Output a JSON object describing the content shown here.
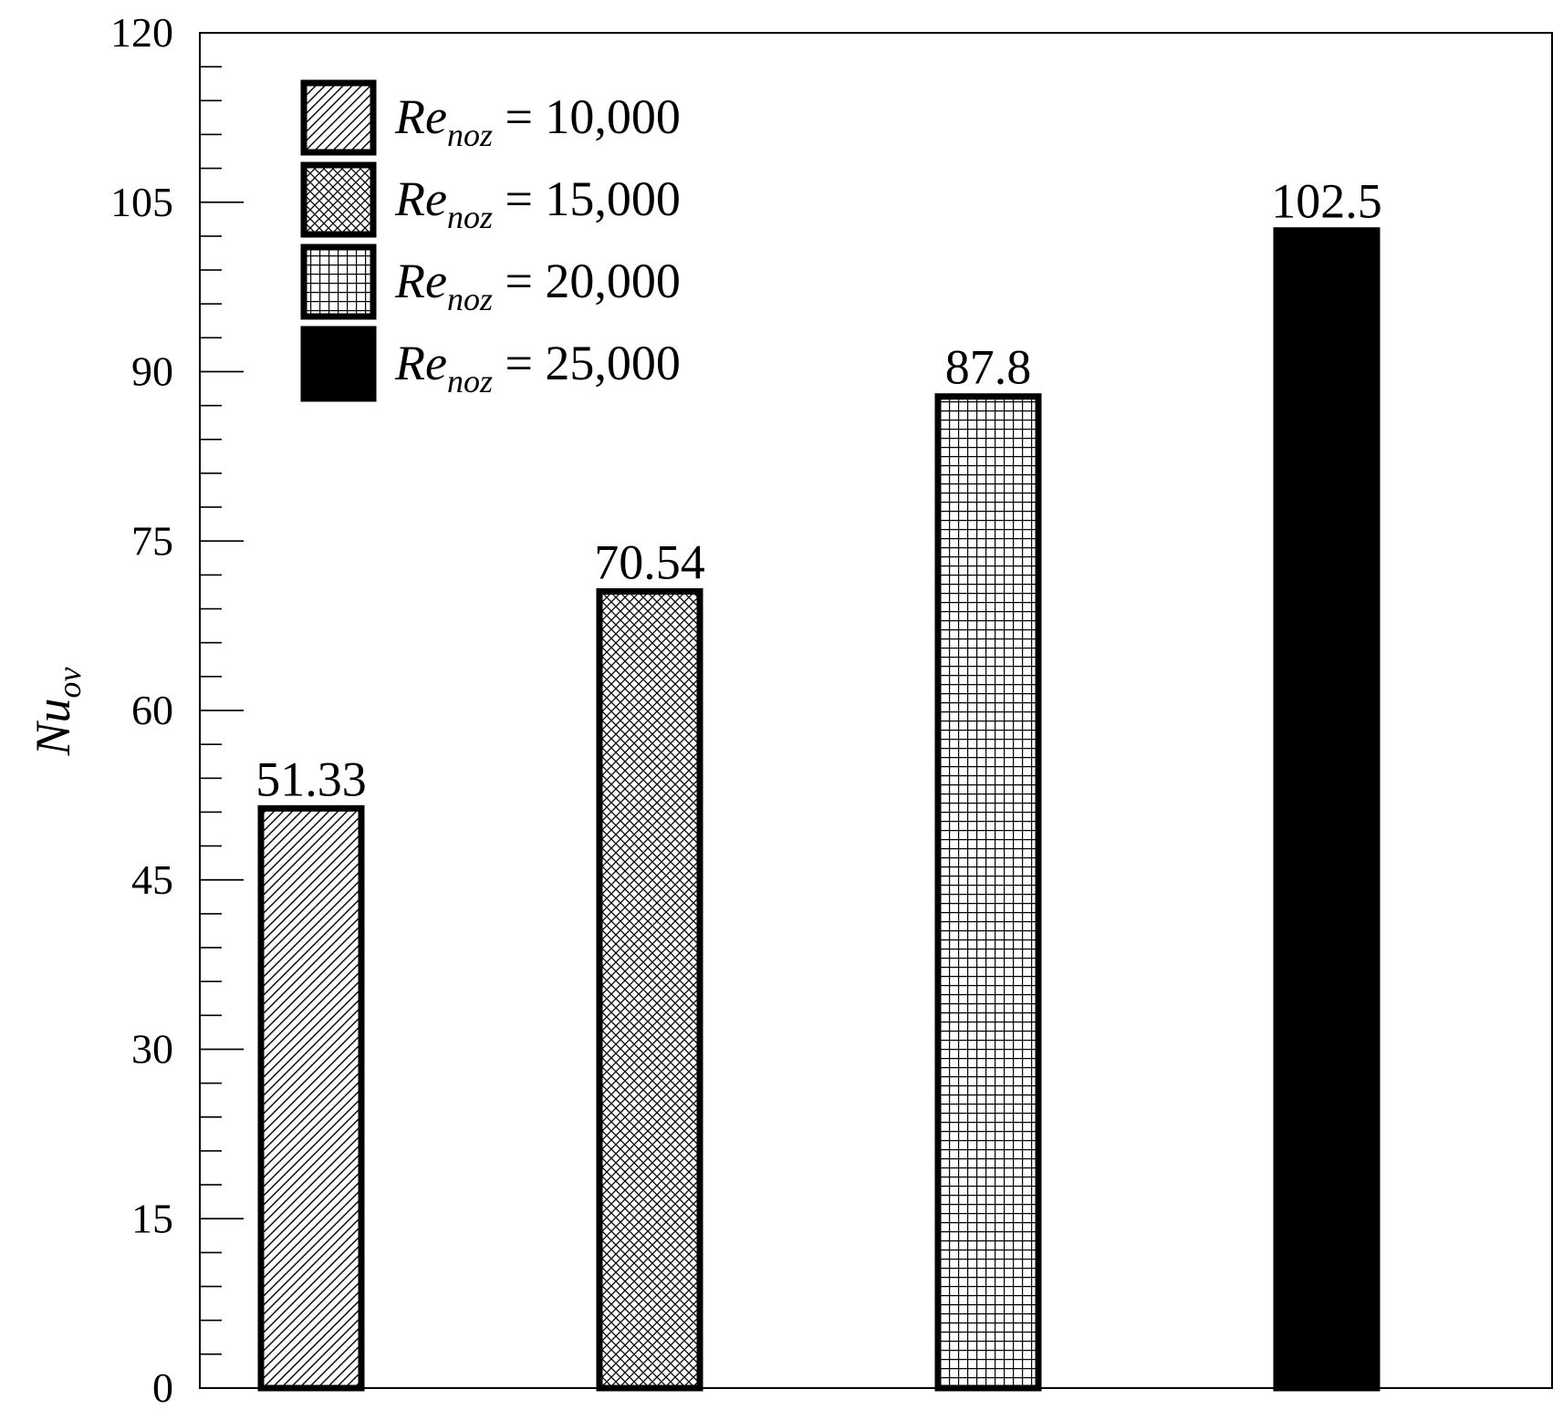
{
  "chart_data": {
    "type": "bar",
    "categories": [
      "Re_noz = 10,000",
      "Re_noz = 15,000",
      "Re_noz = 20,000",
      "Re_noz = 25,000"
    ],
    "values": [
      51.33,
      70.54,
      87.8,
      102.5
    ],
    "value_labels": [
      "51.33",
      "70.54",
      "87.8",
      "102.5"
    ],
    "title": "",
    "xlabel": "",
    "ylabel": {
      "main": "Nu",
      "sub": "ov"
    },
    "ylim": [
      0,
      120
    ],
    "yticks": [
      0,
      15,
      30,
      45,
      60,
      75,
      90,
      105,
      120
    ],
    "minor_tick_step": 3,
    "grid": false,
    "legend_position": "top-left",
    "legend": [
      {
        "prefix": "Re",
        "sub": "noz",
        "suffix": " = 10,000",
        "pattern": "diagonal-hatch"
      },
      {
        "prefix": "Re",
        "sub": "noz",
        "suffix": " = 15,000",
        "pattern": "cross-hatch"
      },
      {
        "prefix": "Re",
        "sub": "noz",
        "suffix": " = 20,000",
        "pattern": "grid"
      },
      {
        "prefix": "Re",
        "sub": "noz",
        "suffix": " = 25,000",
        "pattern": "solid-black"
      }
    ],
    "colors": {
      "ink": "#000000",
      "background": "#ffffff"
    }
  }
}
